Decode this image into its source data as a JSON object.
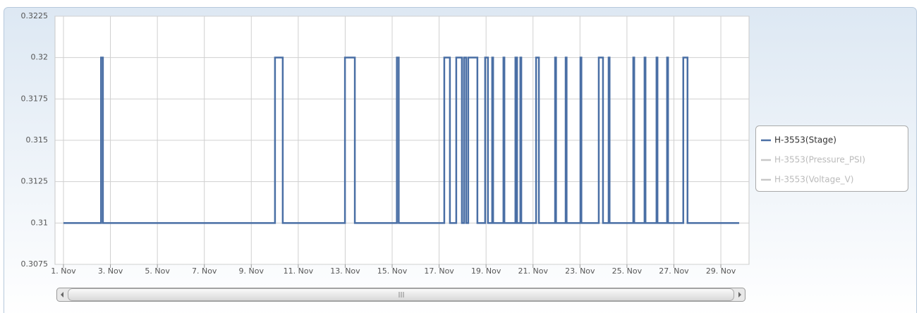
{
  "chart_data": {
    "type": "line",
    "x": [
      1,
      2.6,
      2.6,
      2.68,
      2.68,
      10.01,
      10.01,
      10.34,
      10.34,
      12.99,
      12.99,
      13.41,
      13.41,
      15.2,
      15.2,
      15.28,
      15.28,
      17.22,
      17.22,
      17.46,
      17.46,
      17.73,
      17.73,
      17.97,
      17.97,
      18.06,
      18.06,
      18.15,
      18.15,
      18.24,
      18.24,
      18.63,
      18.63,
      18.96,
      18.96,
      19.08,
      19.08,
      19.26,
      19.26,
      19.3,
      19.3,
      19.74,
      19.74,
      19.78,
      19.78,
      20.25,
      20.25,
      20.32,
      20.32,
      20.46,
      20.46,
      20.5,
      20.5,
      21.13,
      21.13,
      21.25,
      21.25,
      21.94,
      21.94,
      21.98,
      21.98,
      22.39,
      22.39,
      22.43,
      22.43,
      23.02,
      23.02,
      23.06,
      23.06,
      23.8,
      23.8,
      23.98,
      23.98,
      24.22,
      24.22,
      24.26,
      24.26,
      25.27,
      25.27,
      25.31,
      25.31,
      25.75,
      25.75,
      25.79,
      25.79,
      26.26,
      26.26,
      26.3,
      26.3,
      26.71,
      26.71,
      26.75,
      26.75,
      27.4,
      27.4,
      27.58,
      27.58,
      29.78
    ],
    "series": [
      {
        "name": "H-3553(Stage)",
        "color": "#4a6fa5",
        "visible": true,
        "values": [
          0.31,
          0.31,
          0.32,
          0.32,
          0.31,
          0.31,
          0.32,
          0.32,
          0.31,
          0.31,
          0.32,
          0.32,
          0.31,
          0.31,
          0.32,
          0.32,
          0.31,
          0.31,
          0.32,
          0.32,
          0.31,
          0.31,
          0.32,
          0.32,
          0.31,
          0.31,
          0.32,
          0.32,
          0.31,
          0.31,
          0.32,
          0.32,
          0.31,
          0.31,
          0.32,
          0.32,
          0.31,
          0.31,
          0.32,
          0.32,
          0.31,
          0.31,
          0.32,
          0.32,
          0.31,
          0.31,
          0.32,
          0.32,
          0.31,
          0.31,
          0.32,
          0.32,
          0.31,
          0.31,
          0.32,
          0.32,
          0.31,
          0.31,
          0.32,
          0.32,
          0.31,
          0.31,
          0.32,
          0.32,
          0.31,
          0.31,
          0.32,
          0.32,
          0.31,
          0.31,
          0.32,
          0.32,
          0.31,
          0.31,
          0.32,
          0.32,
          0.31,
          0.31,
          0.32,
          0.32,
          0.31,
          0.31,
          0.32,
          0.32,
          0.31,
          0.31,
          0.32,
          0.32,
          0.31,
          0.31,
          0.32,
          0.32,
          0.31,
          0.31,
          0.32,
          0.32,
          0.31,
          0.31
        ]
      },
      {
        "name": "H-3553(Pressure_PSI)",
        "color": "#c8c8c8",
        "visible": false
      },
      {
        "name": "H-3553(Voltage_V)",
        "color": "#c8c8c8",
        "visible": false
      }
    ],
    "xlim": [
      0.64,
      30.2
    ],
    "xticks": [
      {
        "value": 1,
        "label": "1. Nov"
      },
      {
        "value": 3,
        "label": "3. Nov"
      },
      {
        "value": 5,
        "label": "5. Nov"
      },
      {
        "value": 7,
        "label": "7. Nov"
      },
      {
        "value": 9,
        "label": "9. Nov"
      },
      {
        "value": 11,
        "label": "11. Nov"
      },
      {
        "value": 13,
        "label": "13. Nov"
      },
      {
        "value": 15,
        "label": "15. Nov"
      },
      {
        "value": 17,
        "label": "17. Nov"
      },
      {
        "value": 19,
        "label": "19. Nov"
      },
      {
        "value": 21,
        "label": "21. Nov"
      },
      {
        "value": 23,
        "label": "23. Nov"
      },
      {
        "value": 25,
        "label": "25. Nov"
      },
      {
        "value": 27,
        "label": "27. Nov"
      },
      {
        "value": 29,
        "label": "29. Nov"
      }
    ],
    "ylim": [
      0.3075,
      0.3225
    ],
    "yticks": [
      0.3075,
      0.31,
      0.3125,
      0.315,
      0.3175,
      0.32,
      0.3225
    ],
    "grid": true,
    "legend": "right"
  }
}
